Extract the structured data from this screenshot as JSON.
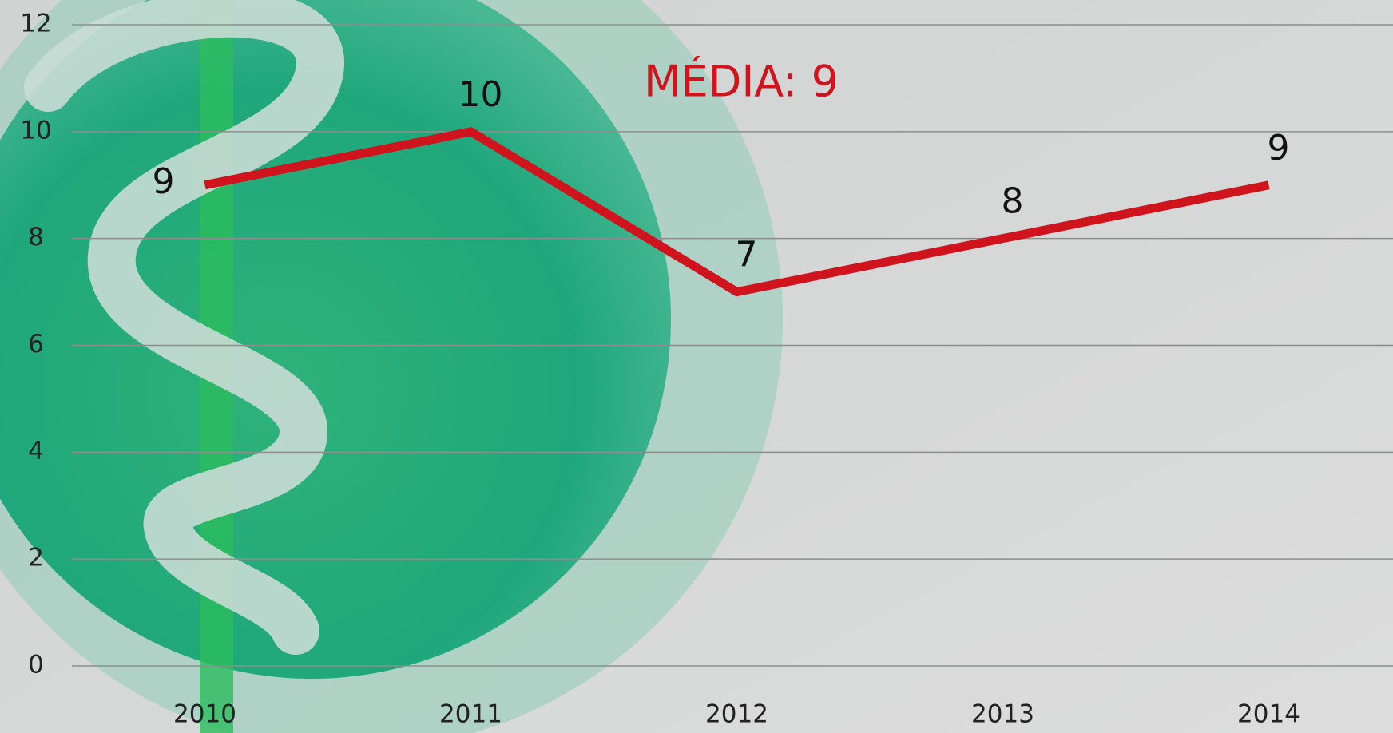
{
  "chart_data": {
    "type": "line",
    "annotation": "MÉDIA: 9",
    "categories": [
      "2010",
      "2011",
      "2012",
      "2013",
      "2014"
    ],
    "values": [
      9,
      10,
      7,
      8,
      9
    ],
    "color": "#d0141e",
    "ylim": [
      0,
      12
    ],
    "yticks": [
      0,
      2,
      4,
      6,
      8,
      10,
      12
    ],
    "grid": true
  }
}
